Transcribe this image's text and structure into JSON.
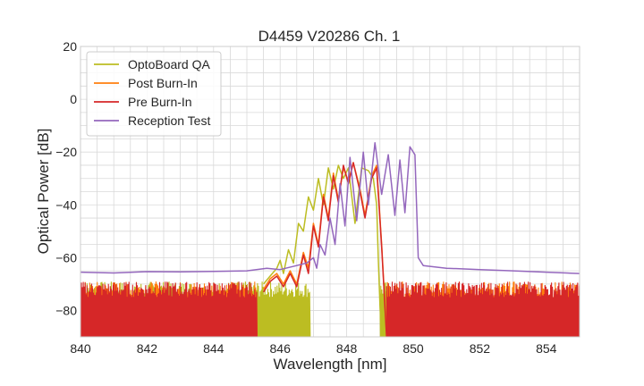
{
  "chart_data": {
    "type": "line",
    "title": "D4459 V20286 Ch. 1",
    "xlabel": "Wavelength [nm]",
    "ylabel": "Optical Power [dB]",
    "xlim": [
      840,
      855
    ],
    "ylim": [
      -90,
      20
    ],
    "xticks": [
      840,
      842,
      844,
      846,
      848,
      850,
      852,
      854
    ],
    "xtick_labels": [
      "840",
      "842",
      "844",
      "846",
      "848",
      "850",
      "852",
      "854"
    ],
    "yticks": [
      20,
      0,
      -20,
      -40,
      -60,
      -80
    ],
    "ytick_labels": [
      "20",
      "0",
      "−20",
      "−40",
      "−60",
      "−80"
    ],
    "grid": true,
    "legend_position": "top-left",
    "series": [
      {
        "name": "OptoBoard QA",
        "color": "#bcbd22",
        "noise_range": [
          840,
          846.9
        ],
        "noise_floor": -72,
        "points": [
          [
            845.5,
            -70
          ],
          [
            845.7,
            -67
          ],
          [
            845.9,
            -64
          ],
          [
            846.0,
            -61
          ],
          [
            846.1,
            -66
          ],
          [
            846.25,
            -57
          ],
          [
            846.4,
            -62
          ],
          [
            846.55,
            -47
          ],
          [
            846.7,
            -50
          ],
          [
            846.85,
            -37
          ],
          [
            847.0,
            -42
          ],
          [
            847.15,
            -30
          ],
          [
            847.3,
            -40
          ],
          [
            847.45,
            -26
          ],
          [
            847.6,
            -34
          ],
          [
            847.75,
            -25
          ],
          [
            847.9,
            -30
          ],
          [
            848.05,
            -26
          ],
          [
            848.25,
            -47
          ],
          [
            848.45,
            -26
          ],
          [
            848.65,
            -27
          ],
          [
            848.8,
            -30
          ],
          [
            848.9,
            -40
          ],
          [
            848.95,
            -60
          ],
          [
            849.0,
            -78
          ],
          [
            849.05,
            -90
          ]
        ],
        "noise_after": [
          849.0,
          849.3
        ]
      },
      {
        "name": "Post Burn-In",
        "color": "#ff7f0e",
        "noise_range": [
          840,
          845.3
        ],
        "noise_floor": -72,
        "points": [
          [
            845.5,
            -72
          ],
          [
            845.7,
            -68
          ],
          [
            845.9,
            -66
          ],
          [
            846.1,
            -70
          ],
          [
            846.3,
            -65
          ],
          [
            846.5,
            -70
          ],
          [
            846.7,
            -58
          ],
          [
            846.85,
            -64
          ],
          [
            847.0,
            -47
          ],
          [
            847.15,
            -55
          ],
          [
            847.3,
            -36
          ],
          [
            847.45,
            -45
          ],
          [
            847.6,
            -28
          ],
          [
            847.75,
            -38
          ],
          [
            847.9,
            -26
          ],
          [
            848.05,
            -31
          ],
          [
            848.2,
            -24
          ],
          [
            848.4,
            -34
          ],
          [
            848.55,
            -44
          ],
          [
            848.75,
            -29
          ],
          [
            848.9,
            -25
          ],
          [
            849.05,
            -55
          ],
          [
            849.15,
            -78
          ],
          [
            849.2,
            -90
          ]
        ],
        "noise_after": [
          849.2,
          855
        ]
      },
      {
        "name": "Pre Burn-In",
        "color": "#d62728",
        "noise_range": [
          840,
          845.3
        ],
        "noise_floor": -72,
        "points": [
          [
            845.5,
            -73
          ],
          [
            845.7,
            -69
          ],
          [
            845.9,
            -67
          ],
          [
            846.1,
            -71
          ],
          [
            846.3,
            -66
          ],
          [
            846.5,
            -71
          ],
          [
            846.7,
            -59
          ],
          [
            846.85,
            -66
          ],
          [
            847.0,
            -48
          ],
          [
            847.15,
            -56
          ],
          [
            847.3,
            -37
          ],
          [
            847.45,
            -46
          ],
          [
            847.6,
            -29
          ],
          [
            847.75,
            -39
          ],
          [
            847.9,
            -25
          ],
          [
            848.05,
            -32
          ],
          [
            848.2,
            -24
          ],
          [
            848.4,
            -35
          ],
          [
            848.55,
            -45
          ],
          [
            848.75,
            -30
          ],
          [
            848.9,
            -26
          ],
          [
            849.05,
            -56
          ],
          [
            849.15,
            -79
          ],
          [
            849.2,
            -90
          ]
        ],
        "noise_after": [
          849.2,
          855
        ]
      },
      {
        "name": "Reception Test",
        "color": "#9467bd",
        "points": [
          [
            840.0,
            -65.5
          ],
          [
            841.0,
            -65.8
          ],
          [
            842.0,
            -65.3
          ],
          [
            843.0,
            -65.4
          ],
          [
            844.0,
            -65.2
          ],
          [
            845.0,
            -65.0
          ],
          [
            845.6,
            -64.0
          ],
          [
            846.0,
            -64.5
          ],
          [
            846.5,
            -63.0
          ],
          [
            846.8,
            -62.0
          ],
          [
            847.0,
            -60.0
          ],
          [
            847.1,
            -64.0
          ],
          [
            847.2,
            -55.0
          ],
          [
            847.35,
            -59.0
          ],
          [
            847.5,
            -45.0
          ],
          [
            847.65,
            -55.0
          ],
          [
            847.8,
            -32.0
          ],
          [
            847.95,
            -48.0
          ],
          [
            848.1,
            -22.0
          ],
          [
            848.3,
            -46.0
          ],
          [
            848.5,
            -20.0
          ],
          [
            848.65,
            -40.0
          ],
          [
            848.85,
            -16.5
          ],
          [
            849.05,
            -36.0
          ],
          [
            849.25,
            -21.0
          ],
          [
            849.45,
            -44.0
          ],
          [
            849.6,
            -23.0
          ],
          [
            849.75,
            -43.0
          ],
          [
            849.9,
            -18.0
          ],
          [
            850.05,
            -21.0
          ],
          [
            850.15,
            -60.0
          ],
          [
            850.3,
            -63.0
          ],
          [
            851.0,
            -64.0
          ],
          [
            852.0,
            -64.5
          ],
          [
            853.0,
            -65.0
          ],
          [
            854.0,
            -65.5
          ],
          [
            855.0,
            -66.0
          ]
        ]
      }
    ]
  }
}
